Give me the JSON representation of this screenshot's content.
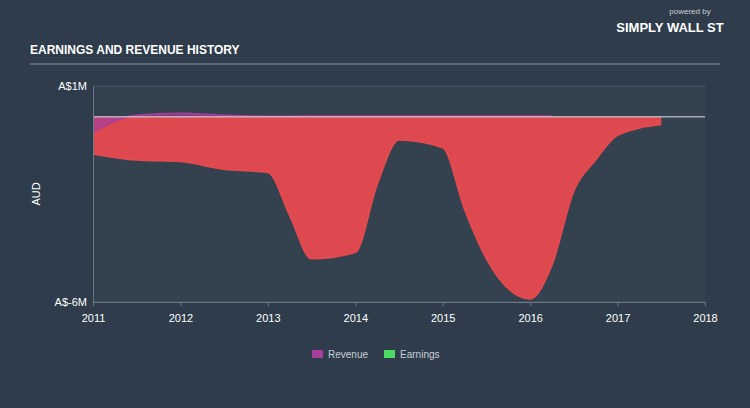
{
  "chart_data": {
    "type": "area",
    "title": "EARNINGS AND REVENUE HISTORY",
    "annotations": [
      "powered by",
      "SIMPLY WALL ST"
    ],
    "y_label": "AUD",
    "x": [
      2011,
      2011.5,
      2012,
      2012.5,
      2013,
      2013.25,
      2013.5,
      2014,
      2014.25,
      2014.5,
      2015,
      2015.25,
      2015.5,
      2016,
      2016.25,
      2016.5,
      2016.75,
      2017,
      2017.5
    ],
    "xlim": [
      2011,
      2018
    ],
    "xticks": [
      2011,
      2012,
      2013,
      2014,
      2015,
      2016,
      2017,
      2018
    ],
    "ylim": [
      -6,
      1
    ],
    "yticks": [
      {
        "value": -6,
        "label": "A$-6M"
      },
      {
        "value": 1,
        "label": "A$1M"
      }
    ],
    "grid": true,
    "legend": "bottom",
    "series": [
      {
        "name": "Revenue",
        "color": "#a53e9c",
        "values": [
          -0.5,
          0.05,
          0.12,
          0.05,
          0.02,
          0.02,
          0.03,
          0.03,
          0.03,
          0.03,
          0.03,
          0.03,
          0.03,
          0.03,
          0.03,
          null,
          null,
          null,
          null
        ]
      },
      {
        "name": "Earnings",
        "color": "#4cd964",
        "values": [
          -1.2,
          -1.4,
          -1.45,
          -1.7,
          -1.8,
          -3.2,
          -4.6,
          -4.4,
          -2.2,
          -0.75,
          -1.0,
          -3.0,
          -4.6,
          -5.9,
          -4.8,
          -2.4,
          -1.4,
          -0.6,
          -0.25
        ]
      }
    ]
  }
}
